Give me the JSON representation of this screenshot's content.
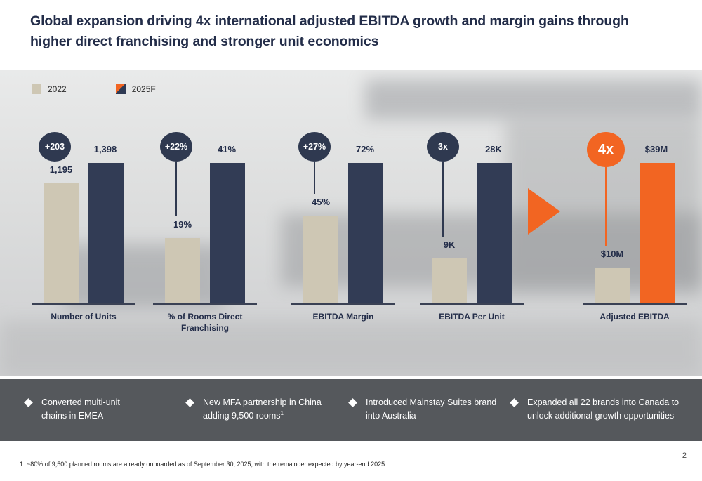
{
  "slide": {
    "title": "Global expansion driving 4x international adjusted EBITDA growth and margin gains through higher direct franchising and stronger unit economics",
    "page_number": "2",
    "footnote": "1. ~80% of 9,500 planned rooms are already onboarded as of September 30, 2025, with the remainder expected by year-end 2025."
  },
  "legend": {
    "items": [
      {
        "label": "2022",
        "swatch_color": "#cec7b4"
      },
      {
        "label": "2025F",
        "swatch_color": "#2e3a54",
        "swatch_accent": "#f26522"
      }
    ]
  },
  "colors": {
    "navy": "#2e3a54",
    "beige": "#cec7b4",
    "orange": "#f26522",
    "callout_band": "#55585c",
    "title_text": "#232d49"
  },
  "chart_data": [
    {
      "type": "bar",
      "title": "Number of Units",
      "categories": [
        "2022",
        "2025F"
      ],
      "values": [
        1195,
        1398
      ],
      "value_labels": [
        "1,195",
        "1,398"
      ],
      "badge": "+203",
      "ylim": [
        0,
        1400
      ],
      "legend_position": "top-left",
      "grid": false
    },
    {
      "type": "bar",
      "title": "% of Rooms Direct Franchising",
      "categories": [
        "2022",
        "2025F"
      ],
      "values": [
        19,
        41
      ],
      "value_labels": [
        "19%",
        "41%"
      ],
      "badge": "+22%",
      "ylim": [
        0,
        41
      ],
      "grid": false
    },
    {
      "type": "bar",
      "title": "EBITDA Margin",
      "categories": [
        "2022",
        "2025F"
      ],
      "values": [
        45,
        72
      ],
      "value_labels": [
        "45%",
        "72%"
      ],
      "badge": "+27%",
      "ylim": [
        0,
        72
      ],
      "grid": false
    },
    {
      "type": "bar",
      "title": "EBITDA Per Unit",
      "categories": [
        "2022",
        "2025F"
      ],
      "values": [
        9,
        28
      ],
      "value_labels": [
        "9K",
        "28K"
      ],
      "badge": "3x",
      "ylim": [
        0,
        28
      ],
      "grid": false
    },
    {
      "type": "bar",
      "title": "Adjusted EBITDA",
      "categories": [
        "2022",
        "2025F"
      ],
      "values": [
        10,
        39
      ],
      "value_labels": [
        "$10M",
        "$39M"
      ],
      "badge": "4x",
      "highlight": true,
      "ylim": [
        0,
        39
      ],
      "grid": false
    }
  ],
  "callouts": [
    {
      "text": "Converted multi-unit chains in EMEA"
    },
    {
      "text": "New MFA partnership in China adding 9,500 rooms",
      "sup": "1"
    },
    {
      "text": "Introduced Mainstay Suites brand into Australia"
    },
    {
      "text": "Expanded all 22 brands into Canada to unlock additional growth opportunities"
    }
  ]
}
